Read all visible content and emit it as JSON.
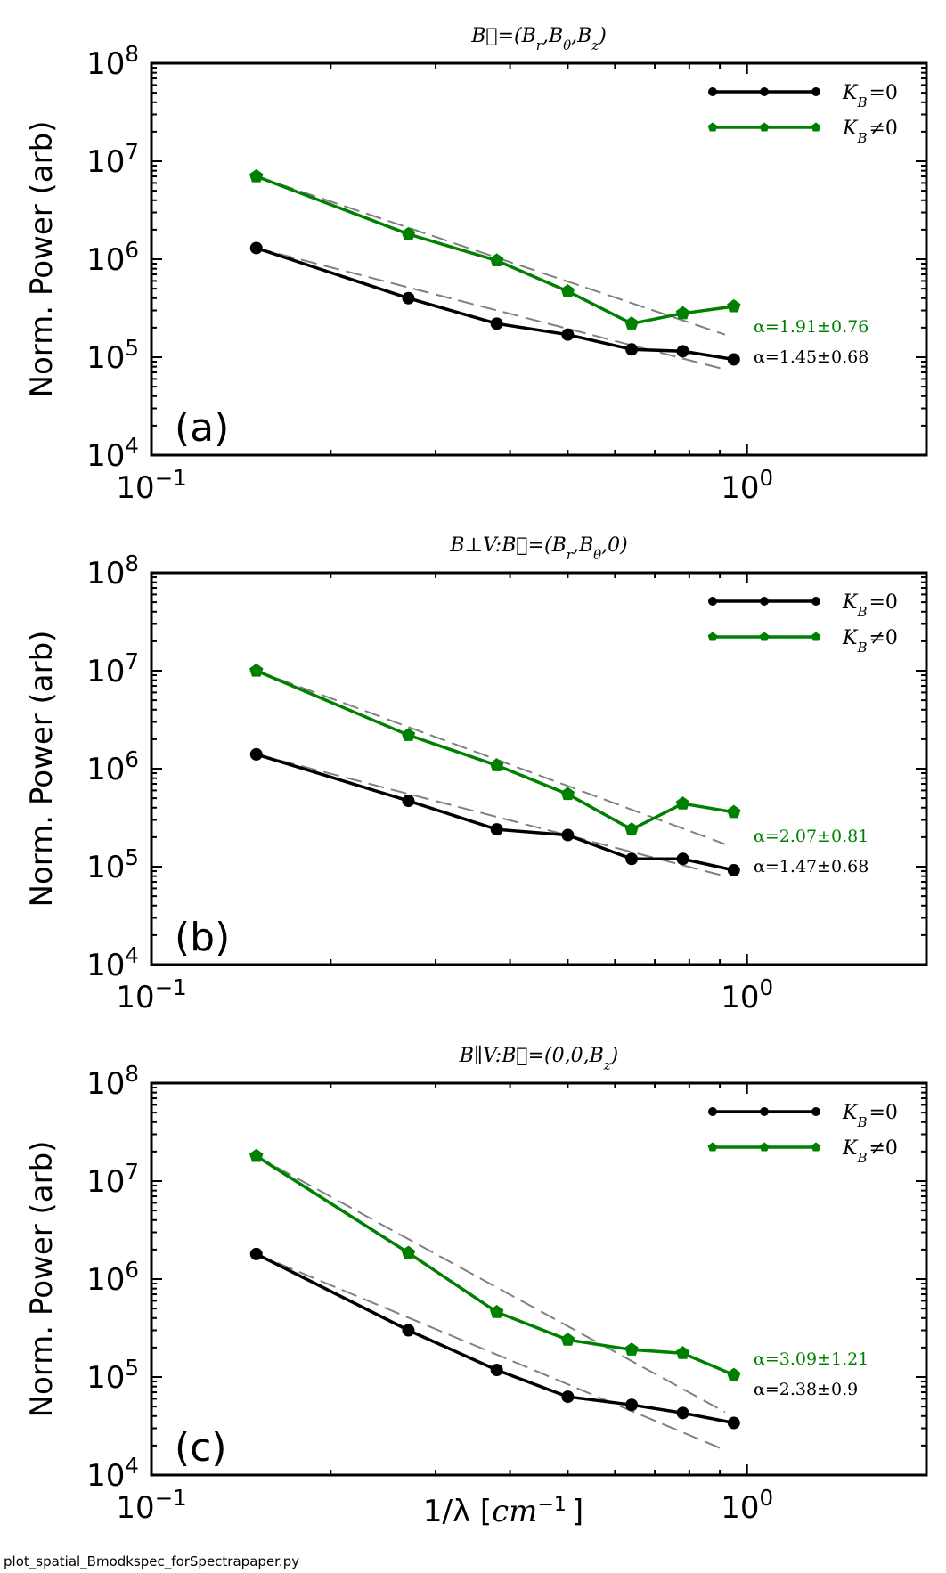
{
  "chart_data": [
    {
      "type": "line",
      "title": "B⃗=(Br,Bθ,Bz)",
      "panel_label": "(a)",
      "xlabel": "",
      "ylabel": "Norm. Power (arb)",
      "xscale": "log",
      "yscale": "log",
      "xlim": [
        0.1,
        2.0
      ],
      "ylim": [
        10000,
        100000000
      ],
      "x_tick_labels": [
        "10-1",
        "100"
      ],
      "y_tick_labels": [
        "104",
        "105",
        "106",
        "107",
        "108"
      ],
      "legend_position": "top-right",
      "series": [
        {
          "name": "KB=0",
          "color": "#000000",
          "marker": "circle",
          "x": [
            0.15,
            0.27,
            0.38,
            0.5,
            0.64,
            0.78,
            0.95
          ],
          "y": [
            1300000,
            400000,
            220000,
            170000,
            120000,
            115000,
            95000
          ],
          "fit_label": "α=1.45±0.68",
          "fit_endpoints_y": [
            1300000,
            75000
          ]
        },
        {
          "name": "KB≠0",
          "color": "#008000",
          "marker": "pentagon",
          "x": [
            0.15,
            0.27,
            0.38,
            0.5,
            0.64,
            0.78,
            0.95
          ],
          "y": [
            7000000,
            1800000,
            970000,
            470000,
            220000,
            280000,
            330000
          ],
          "fit_label": "α=1.91±0.76",
          "fit_endpoints_y": [
            7000000,
            170000
          ]
        }
      ]
    },
    {
      "type": "line",
      "title": "B⊥V:B⃗=(Br,Bθ,0)",
      "panel_label": "(b)",
      "xlabel": "",
      "ylabel": "Norm. Power (arb)",
      "xscale": "log",
      "yscale": "log",
      "xlim": [
        0.1,
        2.0
      ],
      "ylim": [
        10000,
        100000000
      ],
      "x_tick_labels": [
        "10-1",
        "100"
      ],
      "y_tick_labels": [
        "104",
        "105",
        "106",
        "107",
        "108"
      ],
      "legend_position": "top-right",
      "series": [
        {
          "name": "KB=0",
          "color": "#000000",
          "marker": "circle",
          "x": [
            0.15,
            0.27,
            0.38,
            0.5,
            0.64,
            0.78,
            0.95
          ],
          "y": [
            1400000,
            470000,
            240000,
            210000,
            120000,
            120000,
            92000
          ],
          "fit_label": "α=1.47±0.68",
          "fit_endpoints_y": [
            1400000,
            80000
          ]
        },
        {
          "name": "KB≠0",
          "color": "#008000",
          "marker": "pentagon",
          "x": [
            0.15,
            0.27,
            0.38,
            0.5,
            0.64,
            0.78,
            0.95
          ],
          "y": [
            10000000,
            2200000,
            1080000,
            550000,
            240000,
            440000,
            360000
          ],
          "fit_label": "α=2.07±0.81",
          "fit_endpoints_y": [
            10000000,
            170000
          ]
        }
      ]
    },
    {
      "type": "line",
      "title": "B∥V:B⃗=(0,0,Bz)",
      "panel_label": "(c)",
      "xlabel": "1/λ [cm−1]",
      "ylabel": "Norm. Power (arb)",
      "xscale": "log",
      "yscale": "log",
      "xlim": [
        0.1,
        2.0
      ],
      "ylim": [
        10000,
        100000000
      ],
      "x_tick_labels": [
        "10-1",
        "100"
      ],
      "y_tick_labels": [
        "104",
        "105",
        "106",
        "107",
        "108"
      ],
      "legend_position": "top-right",
      "series": [
        {
          "name": "KB=0",
          "color": "#000000",
          "marker": "circle",
          "x": [
            0.15,
            0.27,
            0.38,
            0.5,
            0.64,
            0.78,
            0.95
          ],
          "y": [
            1800000,
            300000,
            118000,
            63000,
            52000,
            43000,
            34000
          ],
          "fit_label": "α=2.38±0.9",
          "fit_endpoints_y": [
            1800000,
            18000
          ]
        },
        {
          "name": "KB≠0",
          "color": "#008000",
          "marker": "pentagon",
          "x": [
            0.15,
            0.27,
            0.38,
            0.5,
            0.64,
            0.78,
            0.95
          ],
          "y": [
            18000000,
            1850000,
            460000,
            240000,
            190000,
            175000,
            105000
          ],
          "fit_label": "α=3.09±1.21",
          "fit_endpoints_y": [
            18000000,
            44000
          ]
        }
      ]
    }
  ],
  "footer_text": "plot_spatial_Bmodkspec_forSpectrapaper.py"
}
